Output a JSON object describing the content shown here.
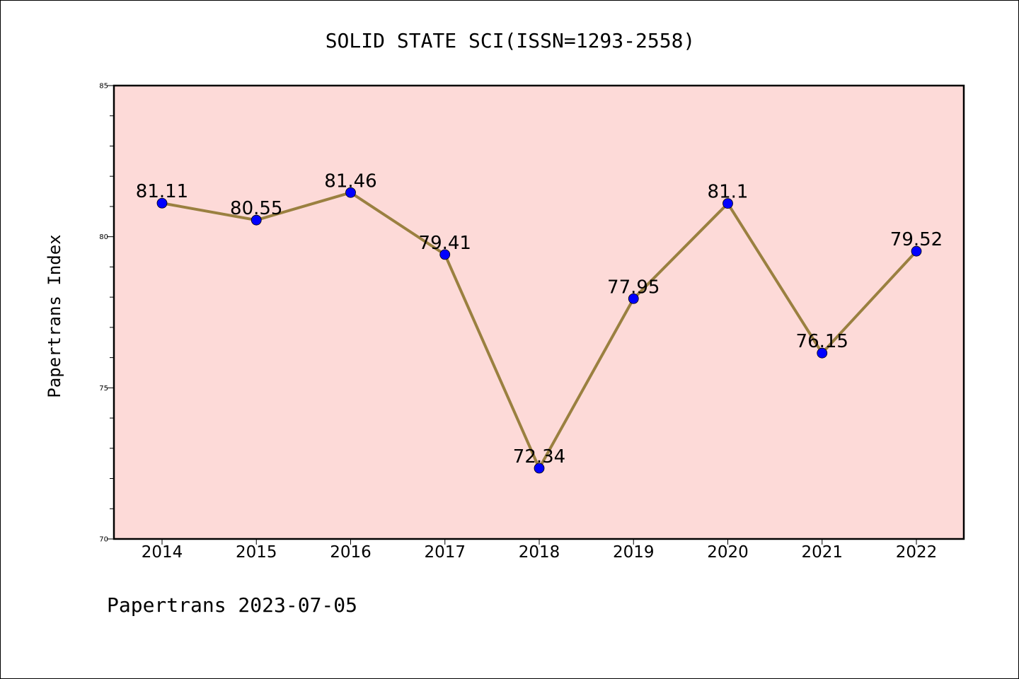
{
  "chart_data": {
    "type": "line",
    "title": "SOLID STATE SCI(ISSN=1293-2558)",
    "ylabel": "Papertrans Index",
    "xlabel": "",
    "footer": "Papertrans 2023-07-05",
    "categories": [
      "2014",
      "2015",
      "2016",
      "2017",
      "2018",
      "2019",
      "2020",
      "2021",
      "2022"
    ],
    "series": [
      {
        "values": [
          81.11,
          80.55,
          81.46,
          79.41,
          72.34,
          77.95,
          81.1,
          76.15,
          79.52
        ],
        "labels": [
          "81.11",
          "80.55",
          "81.46",
          "79.41",
          "72.34",
          "77.95",
          "81.1",
          "76.15",
          "79.52"
        ],
        "line_color": "#9a8040",
        "marker_color": "#0000ff"
      }
    ],
    "ylim": [
      70,
      85
    ],
    "yticks": [
      "70",
      "75",
      "80",
      "85"
    ],
    "plot_background": "#fddad8",
    "grid": false,
    "legend": "none"
  }
}
